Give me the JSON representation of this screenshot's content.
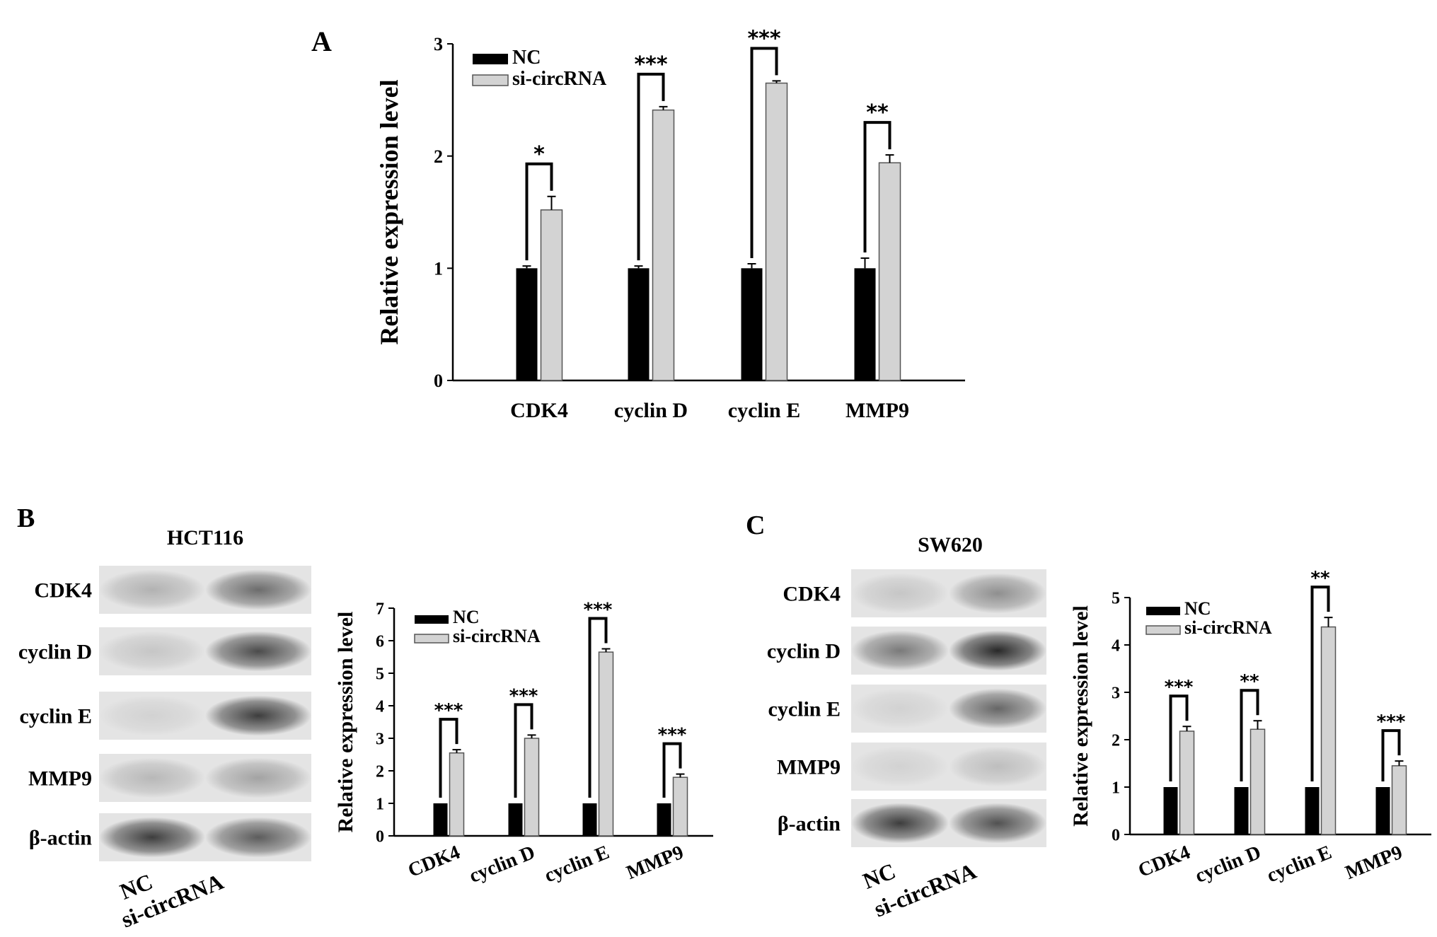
{
  "panels": {
    "A": "A",
    "B": "B",
    "C": "C"
  },
  "colors": {
    "nc": "#000000",
    "si": "#d3d3d3",
    "si_stroke": "#555555",
    "axis": "#000000"
  },
  "blots": [
    {
      "id": "B",
      "cell_line": "HCT116",
      "lane_labels": [
        "NC",
        "si-circRNA"
      ],
      "band_labels": [
        "CDK4",
        "cyclin D",
        "cyclin E",
        "MMP9",
        "β-actin"
      ]
    },
    {
      "id": "C",
      "cell_line": "SW620",
      "lane_labels": [
        "NC",
        "si-circRNA"
      ],
      "band_labels": [
        "CDK4",
        "cyclin D",
        "cyclin E",
        "MMP9",
        "β-actin"
      ]
    }
  ],
  "chart_data": [
    {
      "id": "A",
      "type": "bar",
      "categories": [
        "CDK4",
        "cyclin D",
        "cyclin E",
        "MMP9"
      ],
      "series": [
        {
          "name": "NC",
          "values": [
            1.0,
            1.0,
            1.0,
            1.0
          ],
          "errors": [
            0.02,
            0.02,
            0.04,
            0.09
          ]
        },
        {
          "name": "si-circRNA",
          "values": [
            1.52,
            2.41,
            2.65,
            1.94
          ],
          "errors": [
            0.12,
            0.03,
            0.02,
            0.07
          ]
        }
      ],
      "significance": [
        "*",
        "***",
        "***",
        "**"
      ],
      "ylabel": "Relative expression level",
      "xlabel": "",
      "ylim": [
        0,
        3
      ],
      "yticks": [
        "0",
        "1",
        "2",
        "3"
      ],
      "legend": "top-left"
    },
    {
      "id": "B",
      "type": "bar",
      "categories": [
        "CDK4",
        "cyclin D",
        "cyclin E",
        "MMP9"
      ],
      "series": [
        {
          "name": "NC",
          "values": [
            1.0,
            1.0,
            1.0,
            1.0
          ],
          "errors": [
            0,
            0,
            0,
            0
          ]
        },
        {
          "name": "si-circRNA",
          "values": [
            2.55,
            3.0,
            5.65,
            1.8
          ],
          "errors": [
            0.1,
            0.1,
            0.1,
            0.1
          ]
        }
      ],
      "significance": [
        "***",
        "***",
        "***",
        "***"
      ],
      "ylabel": "Relative expression level",
      "xlabel": "",
      "ylim": [
        0,
        7
      ],
      "yticks": [
        "0",
        "1",
        "2",
        "3",
        "4",
        "5",
        "6",
        "7"
      ],
      "legend": "top-left"
    },
    {
      "id": "C",
      "type": "bar",
      "categories": [
        "CDK4",
        "cyclin D",
        "cyclin E",
        "MMP9"
      ],
      "series": [
        {
          "name": "NC",
          "values": [
            1.0,
            1.0,
            1.0,
            1.0
          ],
          "errors": [
            0,
            0,
            0,
            0
          ]
        },
        {
          "name": "si-circRNA",
          "values": [
            2.18,
            2.22,
            4.38,
            1.45
          ],
          "errors": [
            0.1,
            0.18,
            0.2,
            0.1
          ]
        }
      ],
      "significance": [
        "***",
        "**",
        "**",
        "***"
      ],
      "ylabel": "Relative expression level",
      "xlabel": "",
      "ylim": [
        0,
        5
      ],
      "yticks": [
        "0",
        "1",
        "2",
        "3",
        "4",
        "5"
      ],
      "legend": "top-left"
    }
  ]
}
